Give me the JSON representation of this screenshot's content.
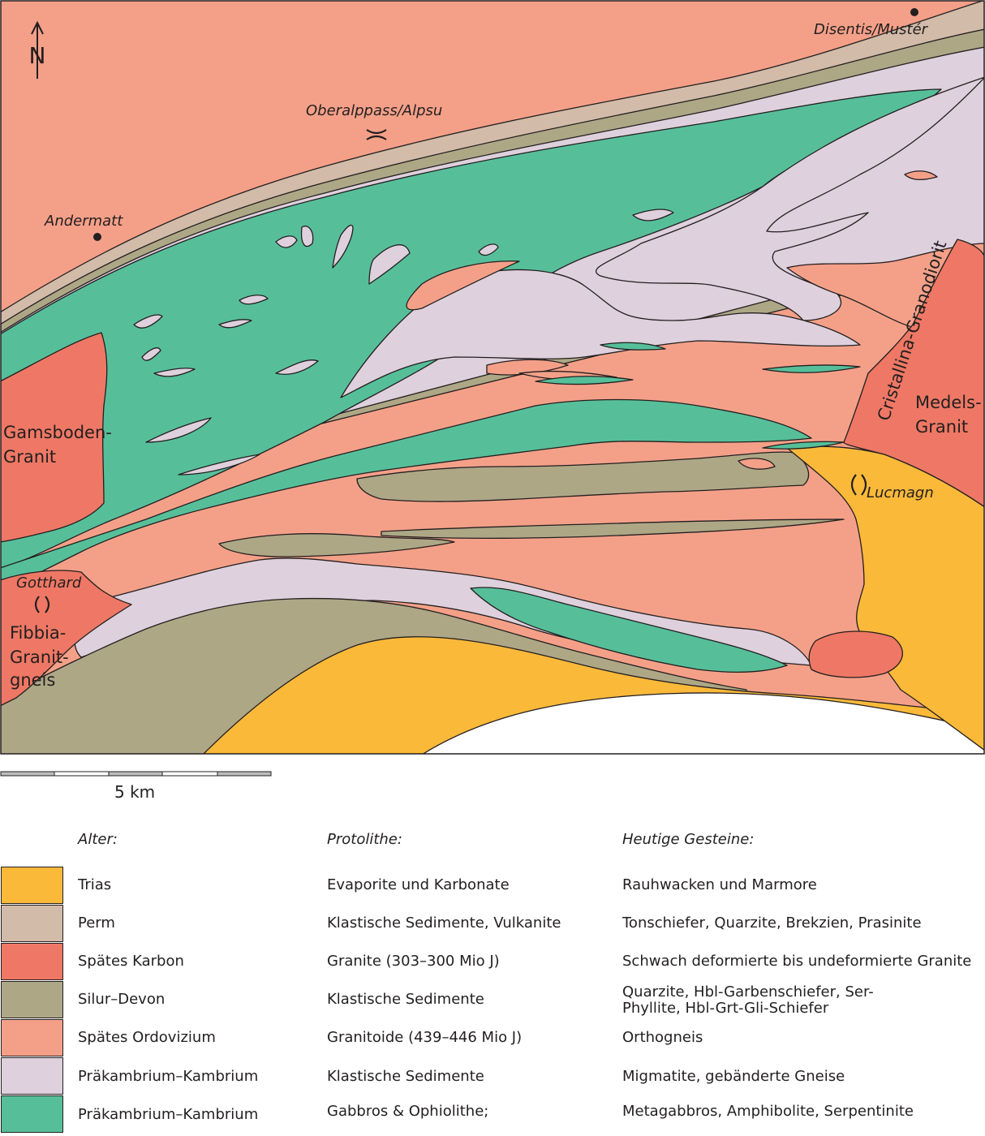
{
  "map": {
    "north_symbol": "N",
    "places": {
      "andermatt": "Andermatt",
      "oberalppass": "Oberalppass/Alpsu",
      "disentis": "Disentis/Mustér",
      "lucmagn": "Lucmagn",
      "gotthard": "Gotthard"
    },
    "units": {
      "gamsboden_1": "Gamsboden-",
      "gamsboden_2": "Granit",
      "fibbia_1": "Fibbia-",
      "fibbia_2": "Granit-",
      "fibbia_3": "gneis",
      "medels_1": "Medels-",
      "medels_2": "Granit",
      "cristallina": "Cristallina-Granodiorit"
    },
    "scale_label": "5 km",
    "colors": {
      "trias": "#fbb93a",
      "perm": "#d2bba8",
      "karbon": "#ee7865",
      "silur": "#aea786",
      "ordovizium": "#f4a088",
      "kambrium_klastisch": "#ded0dc",
      "kambrium_gabbro": "#56bf9a",
      "outline": "#231f20"
    }
  },
  "legend": {
    "headers": {
      "age": "Alter:",
      "protolith": "Protolithe:",
      "rock": "Heutige Gesteine:"
    },
    "rows": [
      {
        "color": "#fbb93a",
        "age": "Trias",
        "protolith": "Evaporite und Karbonate",
        "rock": "Rauhwacken und Marmore"
      },
      {
        "color": "#d2bba8",
        "age": "Perm",
        "protolith": "Klastische Sedimente, Vulkanite",
        "rock": "Tonschiefer, Quarzite, Brekzien, Prasinite"
      },
      {
        "color": "#ee7865",
        "age": "Spätes Karbon",
        "protolith": "Granite (303–300 Mio J)",
        "rock": "Schwach deformierte  bis undeformierte Granite"
      },
      {
        "color": "#aea786",
        "age": "Silur–Devon",
        "protolith": "Klastische Sedimente",
        "rock": "Quarzite, Hbl-Garbenschiefer, Ser-Phyllite, Hbl-Grt-Gli-Schiefer"
      },
      {
        "color": "#f4a088",
        "age": "Spätes Ordovizium",
        "protolith": "Granitoide (439–446 Mio J)",
        "rock": "Orthogneis"
      },
      {
        "color": "#ded0dc",
        "age": "Präkambrium–Kambrium",
        "protolith": "Klastische Sedimente",
        "rock": "Migmatite, gebänderte Gneise"
      },
      {
        "color": "#56bf9a",
        "age": "Präkambrium–Kambrium",
        "protolith": "Gabbros & Ophiolithe;",
        "rock": "Metagabbros, Amphibolite, Serpentinite"
      }
    ]
  }
}
